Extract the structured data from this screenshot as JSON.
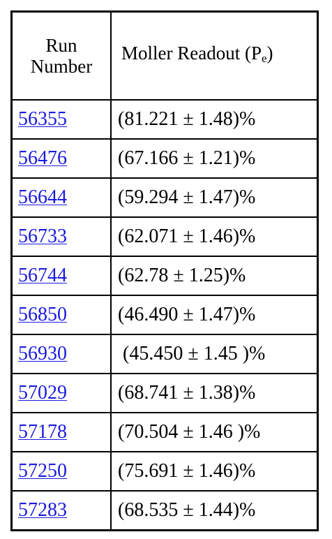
{
  "table": {
    "headers": {
      "run_line1": "Run",
      "run_line2": "Number",
      "moller_main": "Moller Readout (P",
      "moller_sub": "e",
      "moller_close": ")"
    },
    "rows": [
      {
        "run": "56355",
        "readout": "(81.221 ± 1.48)%"
      },
      {
        "run": "56476",
        "readout": "(67.166 ± 1.21)%"
      },
      {
        "run": "56644",
        "readout": "(59.294 ± 1.47)%"
      },
      {
        "run": "56733",
        "readout": "(62.071 ± 1.46)%"
      },
      {
        "run": "56744",
        "readout": "(62.78 ± 1.25)%"
      },
      {
        "run": "56850",
        "readout": "(46.490 ± 1.47)%"
      },
      {
        "run": "56930",
        "readout": " (45.450 ± 1.45 )%"
      },
      {
        "run": "57029",
        "readout": "(68.741 ± 1.38)%"
      },
      {
        "run": "57178",
        "readout": "(70.504 ± 1.46 )%"
      },
      {
        "run": "57250",
        "readout": "(75.691 ± 1.46)%"
      },
      {
        "run": "57283",
        "readout": "(68.535 ± 1.44)%"
      }
    ]
  }
}
